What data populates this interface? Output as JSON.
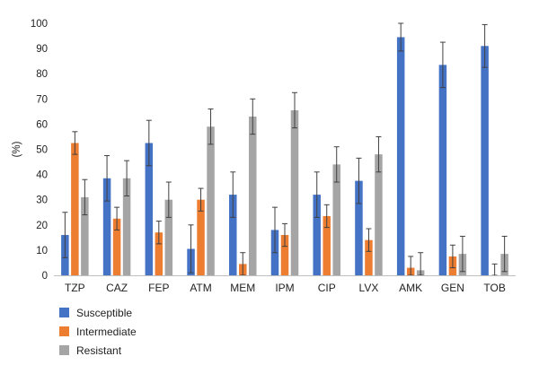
{
  "chart_data": {
    "type": "bar",
    "title": "",
    "xlabel": "",
    "ylabel": "(%)",
    "ylim": [
      0,
      100
    ],
    "yticks": [
      0,
      10,
      20,
      30,
      40,
      50,
      60,
      70,
      80,
      90,
      100
    ],
    "grid": false,
    "legend_position": "bottom-left",
    "categories": [
      "TZP",
      "CAZ",
      "FEP",
      "ATM",
      "MEM",
      "IPM",
      "CIP",
      "LVX",
      "AMK",
      "GEN",
      "TOB"
    ],
    "series": [
      {
        "name": "Susceptible",
        "color": "#4472C4",
        "values": [
          16,
          38.5,
          52.5,
          10.5,
          32,
          18,
          32,
          37.5,
          94.5,
          83.5,
          91
        ],
        "errors": [
          9,
          9,
          9,
          9.5,
          9,
          9,
          9,
          9,
          5.5,
          9,
          8.5
        ]
      },
      {
        "name": "Intermediate",
        "color": "#ED7D31",
        "values": [
          52.5,
          22.5,
          17,
          30,
          4.5,
          16,
          23.5,
          14,
          3,
          7.5,
          0
        ],
        "errors": [
          4.5,
          4.5,
          4.5,
          4.5,
          4.5,
          4.5,
          4.5,
          4.5,
          4.5,
          4.5,
          4.5
        ]
      },
      {
        "name": "Resistant",
        "color": "#A5A5A5",
        "values": [
          31,
          38.5,
          30,
          59,
          63,
          65.5,
          44,
          48,
          2,
          8.5,
          8.5
        ],
        "errors": [
          7,
          7,
          7,
          7,
          7,
          7,
          7,
          7,
          7,
          7,
          7
        ]
      }
    ]
  }
}
